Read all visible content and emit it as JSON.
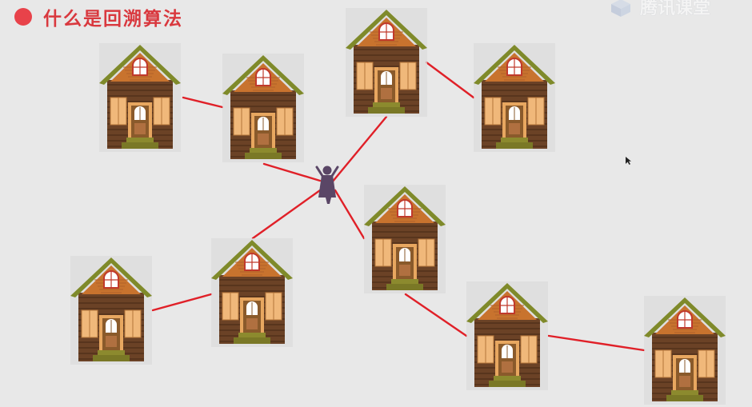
{
  "title": "什么是回溯算法",
  "watermark": "腾讯课堂",
  "colors": {
    "accent": "#e8424a",
    "edge": "#e02028",
    "roof": "#7f8a2a",
    "wall": "#6b4226",
    "wall_stripe": "#4e2e18",
    "gable": "#c8732e",
    "shutter": "#f0b87a",
    "door": "#8a5a2b",
    "steps": "#8c8a2e",
    "person": "#5a4666"
  },
  "nodes": [
    {
      "id": "house-1",
      "kind": "house"
    },
    {
      "id": "house-2",
      "kind": "house"
    },
    {
      "id": "house-3",
      "kind": "house"
    },
    {
      "id": "house-4",
      "kind": "house"
    },
    {
      "id": "house-5",
      "kind": "house"
    },
    {
      "id": "house-6",
      "kind": "house"
    },
    {
      "id": "house-7",
      "kind": "house"
    },
    {
      "id": "house-8",
      "kind": "house"
    },
    {
      "id": "house-9",
      "kind": "house"
    },
    {
      "id": "start",
      "kind": "person"
    }
  ],
  "edges": [
    [
      "house-1",
      "house-2"
    ],
    [
      "house-2",
      "start"
    ],
    [
      "house-3",
      "start"
    ],
    [
      "house-3",
      "house-4"
    ],
    [
      "start",
      "house-6"
    ],
    [
      "start",
      "house-5"
    ],
    [
      "house-6",
      "house-7"
    ],
    [
      "house-5",
      "house-8"
    ],
    [
      "house-8",
      "house-9"
    ]
  ]
}
